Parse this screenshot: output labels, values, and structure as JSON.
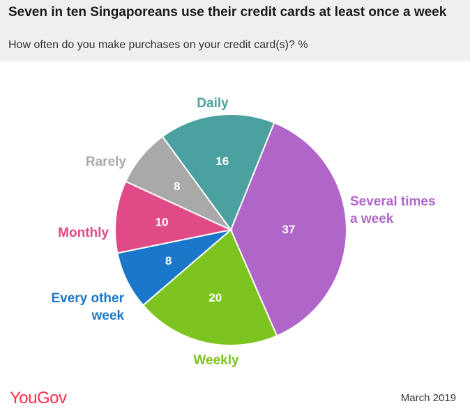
{
  "header": {
    "title": "Seven in ten Singaporeans use their credit cards at least once a week",
    "subtitle": "How often do you make purchases on your credit card(s)? %"
  },
  "footer": {
    "logo": "YouGov",
    "date": "March 2019"
  },
  "chart_data": {
    "type": "pie",
    "title": "Seven in ten Singaporeans use their credit cards at least once a week",
    "subtitle": "How often do you make purchases on your credit card(s)? %",
    "start_angle_deg": 22,
    "direction": "clockwise",
    "slices": [
      {
        "label": "Several times a week",
        "value": 37,
        "color": "#b065c9"
      },
      {
        "label": "Weekly",
        "value": 20,
        "color": "#7cc41f"
      },
      {
        "label": "Every other week",
        "value": 8,
        "color": "#1a77c9"
      },
      {
        "label": "Monthly",
        "value": 10,
        "color": "#e04b87"
      },
      {
        "label": "Rarely",
        "value": 8,
        "color": "#a9a9a9"
      },
      {
        "label": "Daily",
        "value": 16,
        "color": "#4aa19f"
      }
    ]
  }
}
